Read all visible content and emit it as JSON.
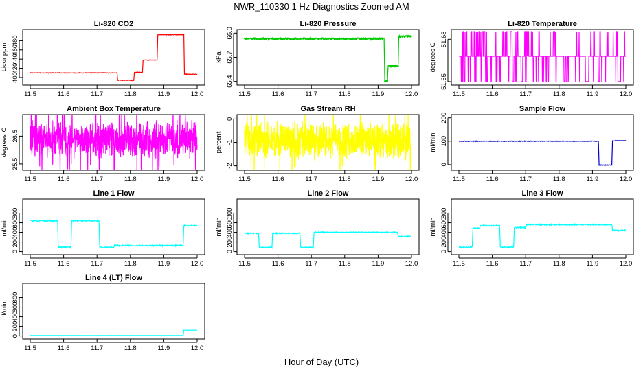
{
  "figure": {
    "title": "NWR_110330  1 Hz Diagnostics Zoomed AM",
    "xlabel": "Hour of Day (UTC)"
  },
  "chart_data": [
    {
      "type": "line",
      "title": "Li-820 CO2",
      "ylabel": "Licor ppm",
      "color": "#ff0000",
      "xlim": [
        11.5,
        12.0
      ],
      "ylim": [
        388,
        500
      ],
      "xticks": [
        11.5,
        11.6,
        11.7,
        11.8,
        11.9,
        12.0
      ],
      "xtick_labels": [
        "11.5",
        "11.6",
        "11.7",
        "11.8",
        "11.9",
        "12.0"
      ],
      "yticks": [
        400,
        420,
        440,
        460,
        480
      ],
      "ytick_labels": [
        "400",
        "420",
        "440",
        "460",
        "480"
      ],
      "noise": 0.6,
      "marker": "none",
      "segments": [
        [
          11.5,
          11.76,
          410
        ],
        [
          11.762,
          11.81,
          394
        ],
        [
          11.812,
          11.836,
          411
        ],
        [
          11.838,
          11.88,
          438
        ],
        [
          11.882,
          11.96,
          493
        ],
        [
          11.962,
          12.0,
          407
        ]
      ],
      "series": [
        {
          "name": "CO2",
          "x": [
            11.5,
            11.76,
            11.762,
            11.81,
            11.812,
            11.836,
            11.838,
            11.88,
            11.882,
            11.96,
            11.962,
            12.0
          ],
          "y": [
            410,
            410,
            394,
            394,
            411,
            411,
            438,
            438,
            493,
            493,
            407,
            407
          ]
        }
      ]
    },
    {
      "type": "line",
      "title": "Li-820 Pressure",
      "ylabel": "kPa",
      "color": "#00cc00",
      "xlim": [
        11.5,
        12.0
      ],
      "ylim": [
        65.38,
        66.02
      ],
      "xticks": [
        11.5,
        11.6,
        11.7,
        11.8,
        11.9,
        12.0
      ],
      "xtick_labels": [
        "11.5",
        "11.6",
        "11.7",
        "11.8",
        "11.9",
        "12.0"
      ],
      "yticks": [
        65.4,
        65.7,
        66.0
      ],
      "ytick_labels": [
        "65.4",
        "65.7",
        "66.0"
      ],
      "noise": 0.01,
      "marker": "dots",
      "segments": [
        [
          11.5,
          11.918,
          65.93
        ],
        [
          11.92,
          11.928,
          65.41
        ],
        [
          11.93,
          11.96,
          65.59
        ],
        [
          11.962,
          12.0,
          65.96
        ]
      ],
      "series": [
        {
          "name": "Pressure",
          "x": [
            11.5,
            11.918,
            11.92,
            11.928,
            11.93,
            11.96,
            11.962,
            12.0
          ],
          "y": [
            65.93,
            65.93,
            65.41,
            65.41,
            65.59,
            65.59,
            65.96,
            65.96
          ]
        }
      ]
    },
    {
      "type": "line",
      "title": "Li-820 Temperature",
      "ylabel": "degrees C",
      "color": "#ff00ff",
      "xlim": [
        11.5,
        12.0
      ],
      "ylim": [
        51.649,
        51.6855
      ],
      "xticks": [
        11.5,
        11.6,
        11.7,
        11.8,
        11.9,
        12.0
      ],
      "xtick_labels": [
        "11.5",
        "11.6",
        "11.7",
        "11.8",
        "11.9",
        "12.0"
      ],
      "yticks": [
        51.65,
        51.68
      ],
      "ytick_labels": [
        "51.65",
        "51.68"
      ],
      "levels": [
        51.65,
        51.668,
        51.6855
      ],
      "base_level": 51.668,
      "switches": 120,
      "marker": "none",
      "series": [
        {
          "name": "Temperature",
          "description": "switching between three quantized levels",
          "values": [
            51.65,
            51.668,
            51.6855
          ]
        }
      ]
    },
    {
      "type": "line",
      "title": "Ambient Box Temperature",
      "ylabel": "degrees C",
      "color": "#ff00ff",
      "xlim": [
        11.5,
        12.0
      ],
      "ylim": [
        25.35,
        27.2
      ],
      "xticks": [
        11.5,
        11.6,
        11.7,
        11.8,
        11.9,
        12.0
      ],
      "xtick_labels": [
        "11.5",
        "11.6",
        "11.7",
        "11.8",
        "11.9",
        "12.0"
      ],
      "yticks": [
        25.5,
        26.5
      ],
      "ytick_labels": [
        "25.5",
        "26.5"
      ],
      "mean": 26.4,
      "band": 0.75,
      "spikes": 40,
      "marker": "none",
      "series": [
        {
          "name": "Box temperature",
          "mean": 26.4,
          "range": [
            25.5,
            27.1
          ]
        }
      ]
    },
    {
      "type": "line",
      "title": "Gas Stream RH",
      "ylabel": "percent",
      "color": "#ffff00",
      "xlim": [
        11.5,
        12.0
      ],
      "ylim": [
        -2.1,
        0.1
      ],
      "xticks": [
        11.5,
        11.6,
        11.7,
        11.8,
        11.9,
        12.0
      ],
      "xtick_labels": [
        "11.5",
        "11.6",
        "11.7",
        "11.8",
        "11.9",
        "12.0"
      ],
      "yticks": [
        -2,
        -1,
        0
      ],
      "ytick_labels": [
        "-2",
        "-1",
        "0"
      ],
      "mean": -0.9,
      "band": 0.9,
      "spikes": 25,
      "marker": "none",
      "series": [
        {
          "name": "RH",
          "mean": -0.9,
          "range": [
            -2.0,
            0.0
          ]
        }
      ]
    },
    {
      "type": "line",
      "title": "Sample Flow",
      "ylabel": "ml/min",
      "color": "#0000cc",
      "xlim": [
        11.5,
        12.0
      ],
      "ylim": [
        -15,
        205
      ],
      "xticks": [
        11.5,
        11.6,
        11.7,
        11.8,
        11.9,
        12.0
      ],
      "xtick_labels": [
        "11.5",
        "11.6",
        "11.7",
        "11.8",
        "11.9",
        "12.0"
      ],
      "yticks": [
        0,
        100,
        200
      ],
      "ytick_labels": [
        "0",
        "100",
        "200"
      ],
      "noise": 1.2,
      "marker": "none",
      "segments": [
        [
          11.5,
          11.918,
          100
        ],
        [
          11.92,
          11.958,
          -2
        ],
        [
          11.96,
          12.0,
          102
        ]
      ],
      "series": [
        {
          "name": "Sample flow",
          "x": [
            11.5,
            11.918,
            11.92,
            11.958,
            11.96,
            12.0
          ],
          "y": [
            100,
            100,
            -2,
            -2,
            102,
            102
          ]
        }
      ]
    },
    {
      "type": "line",
      "title": "Line 1 Flow",
      "ylabel": "ml/min",
      "color": "#00ffff",
      "xlim": [
        11.5,
        12.0
      ],
      "ylim": [
        -20,
        1050
      ],
      "xticks": [
        11.5,
        11.6,
        11.7,
        11.8,
        11.9,
        12.0
      ],
      "xtick_labels": [
        "11.5",
        "11.6",
        "11.7",
        "11.8",
        "11.9",
        "12.0"
      ],
      "yticks": [
        0,
        200,
        400,
        600,
        800
      ],
      "ytick_labels": [
        "0",
        "200",
        "400",
        "600",
        "800"
      ],
      "noise": 12,
      "marker": "none",
      "segments": [
        [
          11.5,
          11.582,
          640
        ],
        [
          11.584,
          11.622,
          90
        ],
        [
          11.624,
          11.706,
          640
        ],
        [
          11.708,
          11.75,
          90
        ],
        [
          11.752,
          11.958,
          125
        ],
        [
          11.96,
          12.0,
          540
        ]
      ],
      "series": [
        {
          "name": "Line 1",
          "x": [
            11.5,
            11.582,
            11.584,
            11.622,
            11.624,
            11.706,
            11.708,
            11.75,
            11.752,
            11.958,
            11.96,
            12.0
          ],
          "y": [
            640,
            640,
            90,
            90,
            640,
            640,
            90,
            90,
            125,
            125,
            540,
            540
          ]
        }
      ]
    },
    {
      "type": "line",
      "title": "Line 2 Flow",
      "ylabel": "ml/min",
      "color": "#00ffff",
      "xlim": [
        11.5,
        12.0
      ],
      "ylim": [
        -20,
        1050
      ],
      "xticks": [
        11.5,
        11.6,
        11.7,
        11.8,
        11.9,
        12.0
      ],
      "xtick_labels": [
        "11.5",
        "11.6",
        "11.7",
        "11.8",
        "11.9",
        "12.0"
      ],
      "yticks": [
        0,
        200,
        400,
        600,
        800
      ],
      "ytick_labels": [
        "0",
        "200",
        "400",
        "600",
        "800"
      ],
      "noise": 10,
      "marker": "none",
      "segments": [
        [
          11.5,
          11.542,
          380
        ],
        [
          11.544,
          11.582,
          90
        ],
        [
          11.584,
          11.666,
          380
        ],
        [
          11.668,
          11.706,
          90
        ],
        [
          11.708,
          11.958,
          400
        ],
        [
          11.96,
          12.0,
          315
        ]
      ],
      "series": [
        {
          "name": "Line 2",
          "x": [
            11.5,
            11.542,
            11.544,
            11.582,
            11.584,
            11.666,
            11.668,
            11.706,
            11.708,
            11.958,
            11.96,
            12.0
          ],
          "y": [
            380,
            380,
            90,
            90,
            380,
            380,
            90,
            90,
            400,
            400,
            315,
            315
          ]
        }
      ]
    },
    {
      "type": "line",
      "title": "Line 3 Flow",
      "ylabel": "ml/min",
      "color": "#00ffff",
      "xlim": [
        11.5,
        12.0
      ],
      "ylim": [
        -20,
        1050
      ],
      "xticks": [
        11.5,
        11.6,
        11.7,
        11.8,
        11.9,
        12.0
      ],
      "xtick_labels": [
        "11.5",
        "11.6",
        "11.7",
        "11.8",
        "11.9",
        "12.0"
      ],
      "yticks": [
        0,
        200,
        400,
        600,
        800
      ],
      "ytick_labels": [
        "0",
        "200",
        "400",
        "600",
        "800"
      ],
      "noise": 12,
      "marker": "none",
      "segments": [
        [
          11.5,
          11.54,
          90
        ],
        [
          11.542,
          11.562,
          490
        ],
        [
          11.564,
          11.622,
          540
        ],
        [
          11.624,
          11.664,
          90
        ],
        [
          11.666,
          11.7,
          500
        ],
        [
          11.702,
          11.958,
          560
        ],
        [
          11.96,
          12.0,
          440
        ]
      ],
      "series": [
        {
          "name": "Line 3",
          "x": [
            11.5,
            11.54,
            11.542,
            11.562,
            11.564,
            11.622,
            11.624,
            11.664,
            11.666,
            11.7,
            11.702,
            11.958,
            11.96,
            12.0
          ],
          "y": [
            90,
            90,
            490,
            490,
            540,
            540,
            90,
            90,
            500,
            500,
            560,
            560,
            440,
            440
          ]
        }
      ]
    },
    {
      "type": "line",
      "title": "Line 4 (LT) Flow",
      "ylabel": "ml/min",
      "color": "#00ffff",
      "xlim": [
        11.5,
        12.0
      ],
      "ylim": [
        -20,
        1050
      ],
      "xticks": [
        11.5,
        11.6,
        11.7,
        11.8,
        11.9,
        12.0
      ],
      "xtick_labels": [
        "11.5",
        "11.6",
        "11.7",
        "11.8",
        "11.9",
        "12.0"
      ],
      "yticks": [
        0,
        200,
        400,
        600,
        800
      ],
      "ytick_labels": [
        "0",
        "200",
        "400",
        "600",
        "800"
      ],
      "noise": 2,
      "marker": "none",
      "segments": [
        [
          11.5,
          11.958,
          10
        ],
        [
          11.96,
          12.0,
          120
        ]
      ],
      "series": [
        {
          "name": "Line 4 (LT)",
          "x": [
            11.5,
            11.958,
            11.96,
            12.0
          ],
          "y": [
            10,
            10,
            120,
            120
          ]
        }
      ]
    }
  ]
}
